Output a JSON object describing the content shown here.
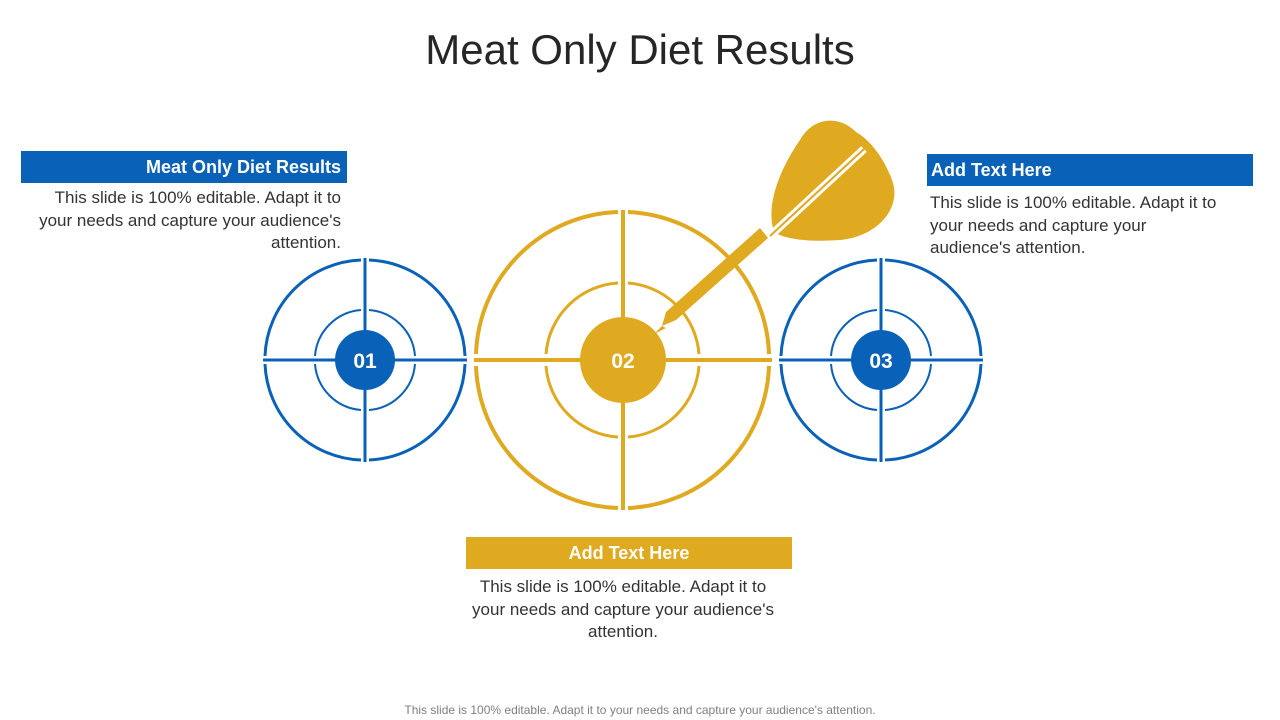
{
  "title": "Meat Only Diet Results",
  "items": [
    {
      "number": "01",
      "heading": "Meat Only Diet Results",
      "text": "This slide is 100% editable. Adapt it to your needs and capture your audience's attention.",
      "color": "#0a62b8"
    },
    {
      "number": "02",
      "heading": "Add Text Here",
      "text": "This slide is 100% editable. Adapt it to your needs and capture your audience's attention.",
      "color": "#dfa920"
    },
    {
      "number": "03",
      "heading": "Add Text Here",
      "text": "This slide is 100% editable. Adapt it to your needs and capture your audience's attention.",
      "color": "#0a62b8"
    }
  ],
  "icons": [
    "target-icon",
    "dart-icon"
  ],
  "footer": "This slide is 100% editable. Adapt it to your needs and capture your audience's attention."
}
